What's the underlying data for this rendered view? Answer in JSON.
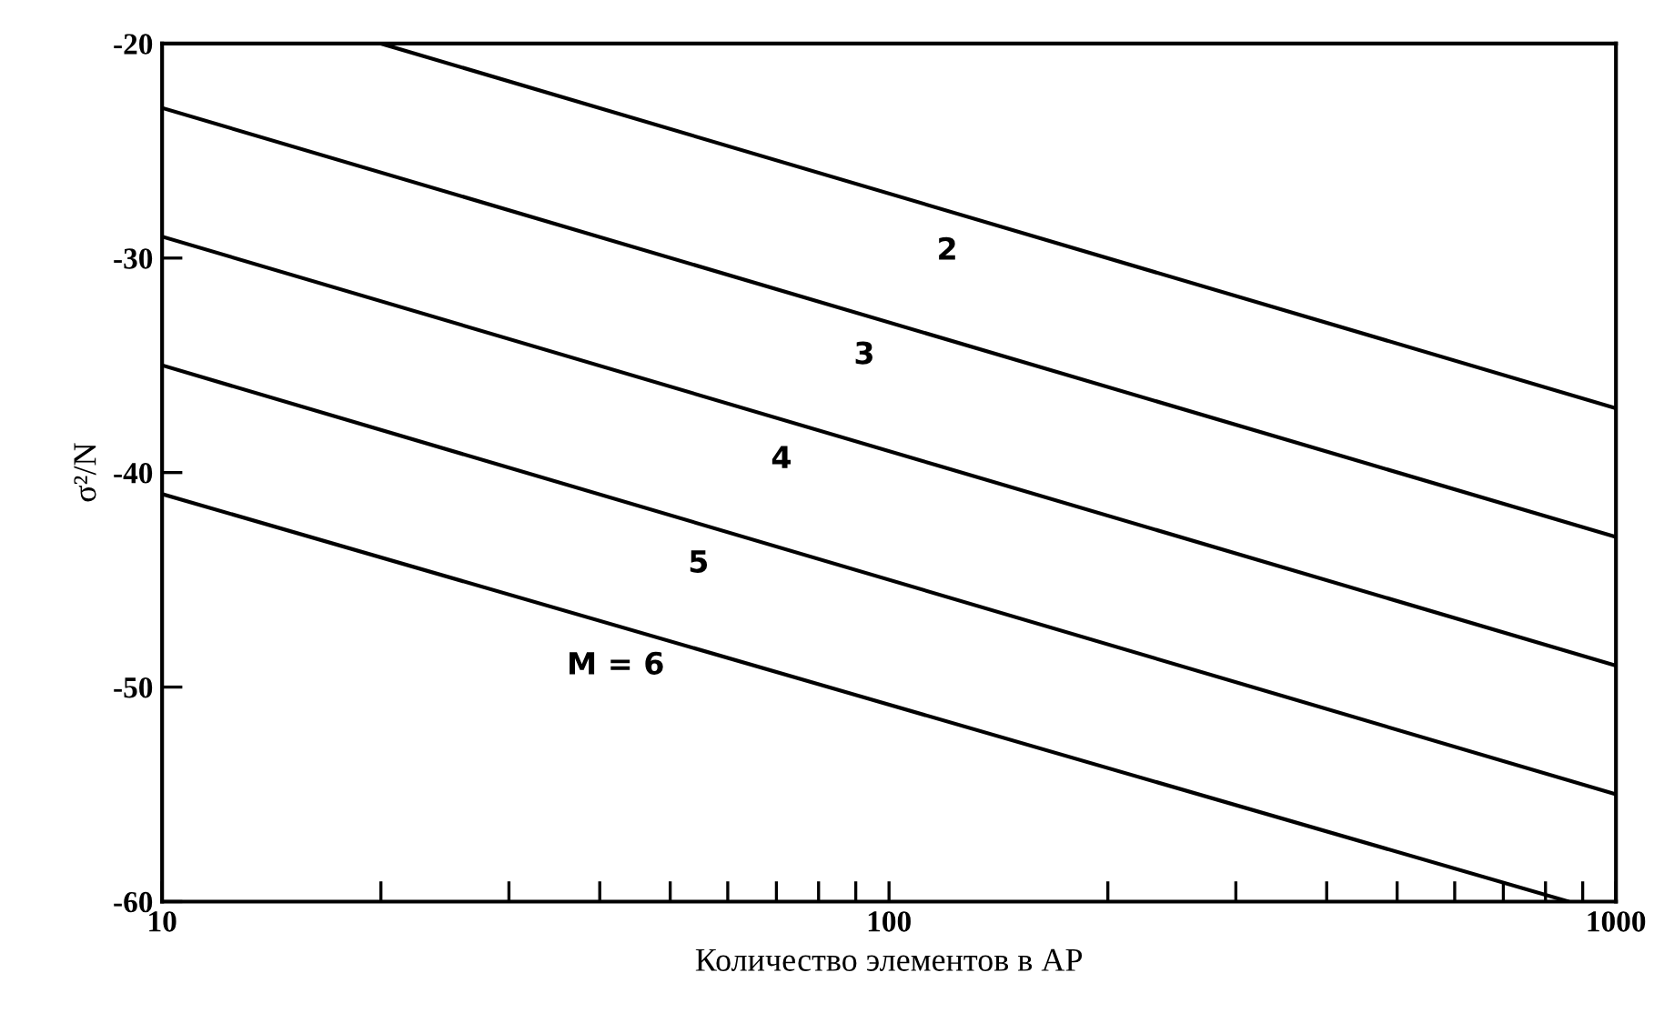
{
  "chart_data": {
    "type": "line",
    "xlabel": "Количество элементов в АР",
    "ylabel": "σ²/N",
    "log": "x",
    "xlim": [
      10,
      1000
    ],
    "ylim": [
      -60,
      -20
    ],
    "xticks": [
      10,
      {
        "value": 20,
        "label": null
      },
      {
        "value": 30,
        "label": null
      },
      {
        "value": 40,
        "label": null
      },
      {
        "value": 50,
        "label": null
      },
      {
        "value": 60,
        "label": null
      },
      {
        "value": 70,
        "label": null
      },
      {
        "value": 80,
        "label": null
      },
      {
        "value": 90,
        "label": null
      },
      100,
      {
        "value": 200,
        "label": null
      },
      {
        "value": 300,
        "label": null
      },
      {
        "value": 400,
        "label": null
      },
      {
        "value": 500,
        "label": null
      },
      {
        "value": 600,
        "label": null
      },
      {
        "value": 700,
        "label": null
      },
      {
        "value": 800,
        "label": null
      },
      {
        "value": 900,
        "label": null
      },
      1000
    ],
    "yticks": [
      -20,
      -30,
      -40,
      -50,
      -60
    ],
    "grid": false,
    "marker": "none",
    "line_style": "solid",
    "series": [
      {
        "name": "2",
        "color": "#000000",
        "x": [
          20,
          1000
        ],
        "values": [
          -20,
          -37
        ]
      },
      {
        "name": "3",
        "color": "#000000",
        "x": [
          10,
          1000
        ],
        "values": [
          -23,
          -43
        ]
      },
      {
        "name": "4",
        "color": "#000000",
        "x": [
          10,
          1000
        ],
        "values": [
          -29,
          -49
        ]
      },
      {
        "name": "5",
        "color": "#000000",
        "x": [
          10,
          1000
        ],
        "values": [
          -35,
          -55
        ]
      },
      {
        "name": "M = 6",
        "color": "#000000",
        "x": [
          10,
          861
        ],
        "values": [
          -41,
          -60
        ]
      }
    ]
  }
}
